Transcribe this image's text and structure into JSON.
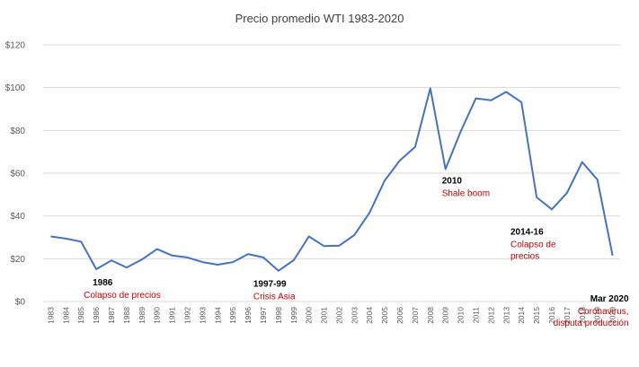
{
  "chart_data": {
    "type": "line",
    "title": "Precio promedio WTI 1983-2020",
    "xlabel": "",
    "ylabel": "",
    "ylim": [
      0,
      120
    ],
    "yticks": [
      "$0",
      "$20",
      "$40",
      "$60",
      "$80",
      "$100",
      "$120"
    ],
    "grid": true,
    "legend": "none",
    "line_color": "#4472C4",
    "gridline_color": "#D9D9D9",
    "annotation_color": "#C00000",
    "x": [
      "1983",
      "1984",
      "1985",
      "1986",
      "1987",
      "1988",
      "1989",
      "1990",
      "1991",
      "1992",
      "1993",
      "1994",
      "1995",
      "1996",
      "1997",
      "1998",
      "1999",
      "2000",
      "2001",
      "2002",
      "2003",
      "2004",
      "2005",
      "2006",
      "2007",
      "2008",
      "2009",
      "2010",
      "2011",
      "2012",
      "2013",
      "2014",
      "2015",
      "2016",
      "2017",
      "2018",
      "2019",
      "2020"
    ],
    "series": [
      {
        "values": [
          30.4,
          29.4,
          28.0,
          15.1,
          19.2,
          15.9,
          19.6,
          24.5,
          21.5,
          20.6,
          18.4,
          17.2,
          18.4,
          22.2,
          20.6,
          14.4,
          19.3,
          30.4,
          25.9,
          26.1,
          31.1,
          41.5,
          56.6,
          66.0,
          72.3,
          99.7,
          61.9,
          79.5,
          95.0,
          94.1,
          98.0,
          93.2,
          48.7,
          43.1,
          50.8,
          65.2,
          57.0,
          21.5
        ]
      }
    ],
    "annotations": [
      {
        "year_label": "1986",
        "text": [
          "Colapso de precios"
        ],
        "x": "1986",
        "y": 15.1
      },
      {
        "year_label": "1997-99",
        "text": [
          "Crisis Asia"
        ],
        "x": "1998",
        "y": 14.4
      },
      {
        "year_label": "2010",
        "text": [
          "Shale boom"
        ],
        "x": "2009",
        "y": 61.9
      },
      {
        "year_label": "2014-16",
        "text": [
          "Colapso de",
          "precios"
        ],
        "x": "2016",
        "y": 43.1
      },
      {
        "year_label": "Mar 2020",
        "text": [
          "Coronavirus,",
          "disputa producción"
        ],
        "x": "2020",
        "y": 21.5
      }
    ]
  }
}
